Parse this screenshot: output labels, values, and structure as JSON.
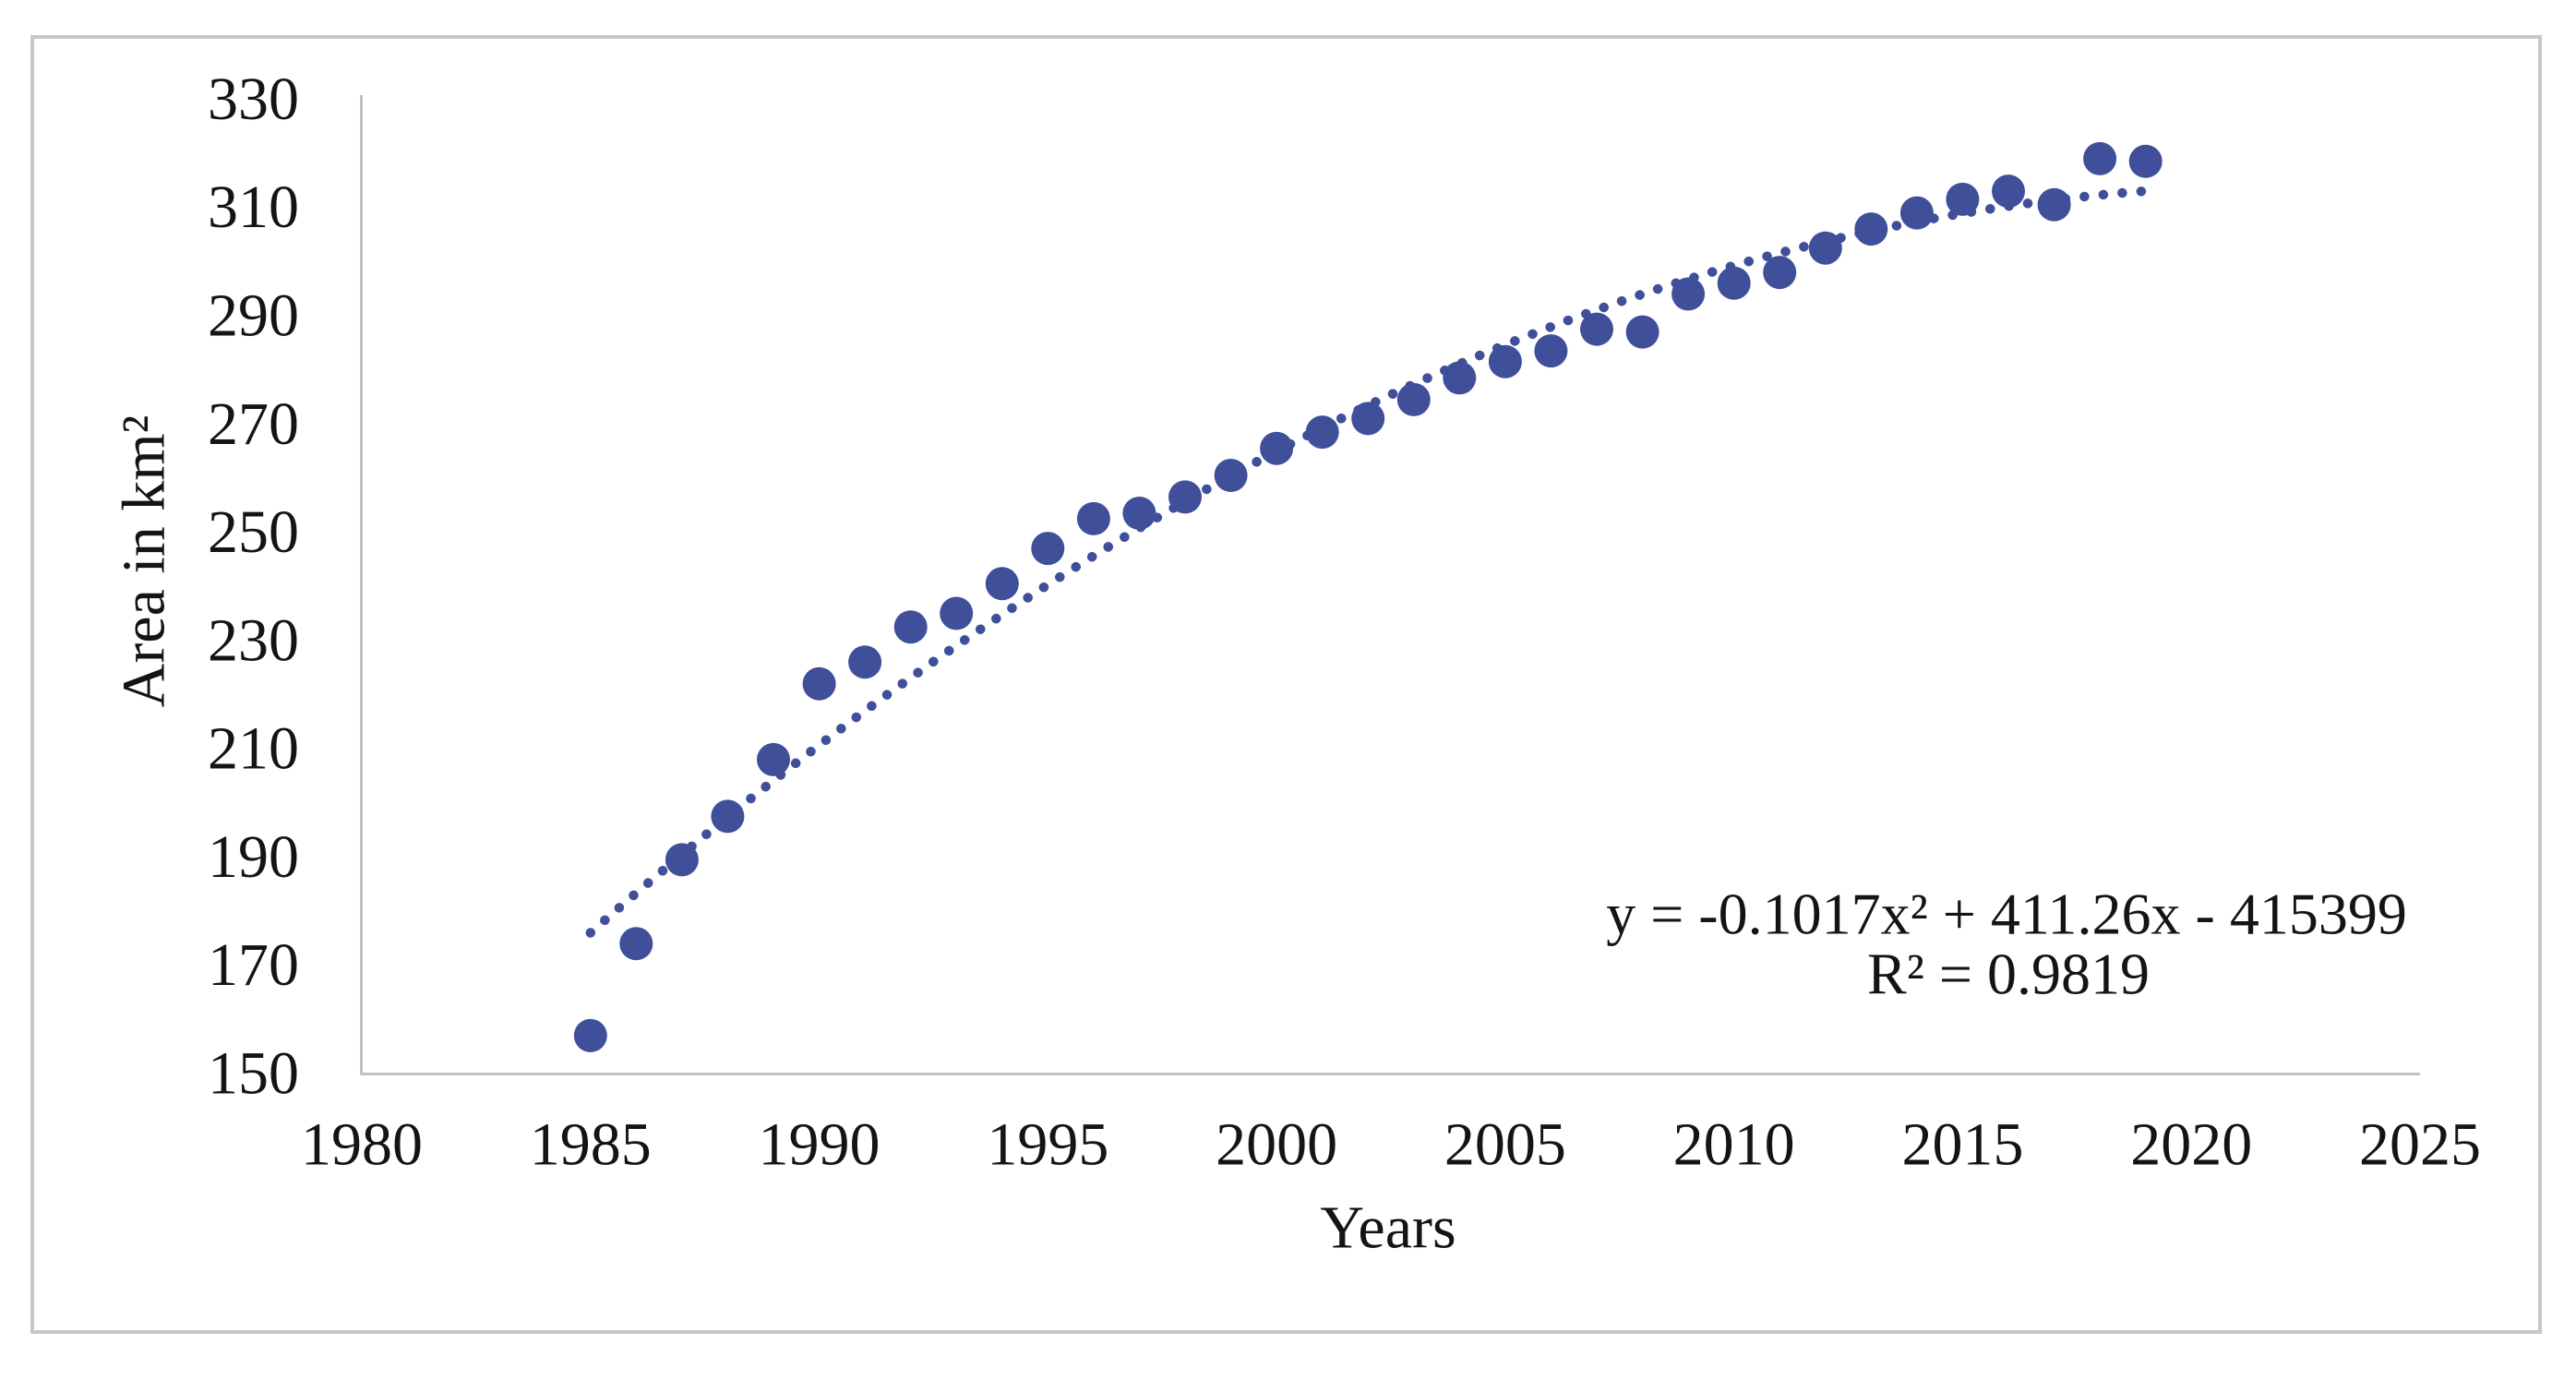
{
  "window": {
    "background": "#ffffff",
    "border_color": "#cbc6c0"
  },
  "chart_data": {
    "type": "scatter",
    "title": "",
    "xlabel": "Years",
    "ylabel": "Area in km²",
    "x": [
      1985,
      1986,
      1987,
      1988,
      1989,
      1990,
      1991,
      1992,
      1993,
      1994,
      1995,
      1996,
      1997,
      1998,
      1999,
      2000,
      2001,
      2002,
      2003,
      2004,
      2005,
      2006,
      2007,
      2008,
      2009,
      2010,
      2011,
      2012,
      2013,
      2014,
      2015,
      2016,
      2017,
      2018,
      2019
    ],
    "series": [
      {
        "name": "Area in km²",
        "values": [
          157,
          174,
          189.5,
          197.5,
          208,
          222,
          226,
          232.5,
          235,
          240.5,
          247,
          252.5,
          253.5,
          256.5,
          260.5,
          265.5,
          268.5,
          271,
          274.5,
          278.5,
          281.5,
          283.5,
          287.5,
          287,
          294,
          296,
          298,
          302.5,
          306,
          309,
          311.5,
          313,
          310.5,
          319,
          318.5
        ]
      }
    ],
    "xlim": [
      1980,
      2025
    ],
    "ylim": [
      150,
      330
    ],
    "x_ticks": [
      1980,
      1985,
      1990,
      1995,
      2000,
      2005,
      2010,
      2015,
      2020,
      2025
    ],
    "y_ticks": [
      150,
      170,
      190,
      210,
      230,
      250,
      270,
      290,
      310,
      330
    ],
    "grid": false,
    "legend": "none",
    "marker_color": "#3f4f99",
    "axis_line_color": "#c6c0b8",
    "text_color": "#141414",
    "trendline": {
      "type": "polynomial-order-2",
      "style": "dotted",
      "color": "#3f4f99",
      "equation_label": "y = -0.1017x² + 411.26x - 415399",
      "r_squared_label": "R² = 0.9819",
      "fit_rel_1985": {
        "a": -0.1,
        "b": 7.43,
        "c": 176
      },
      "span_years": [
        1985,
        2019.1
      ]
    }
  }
}
